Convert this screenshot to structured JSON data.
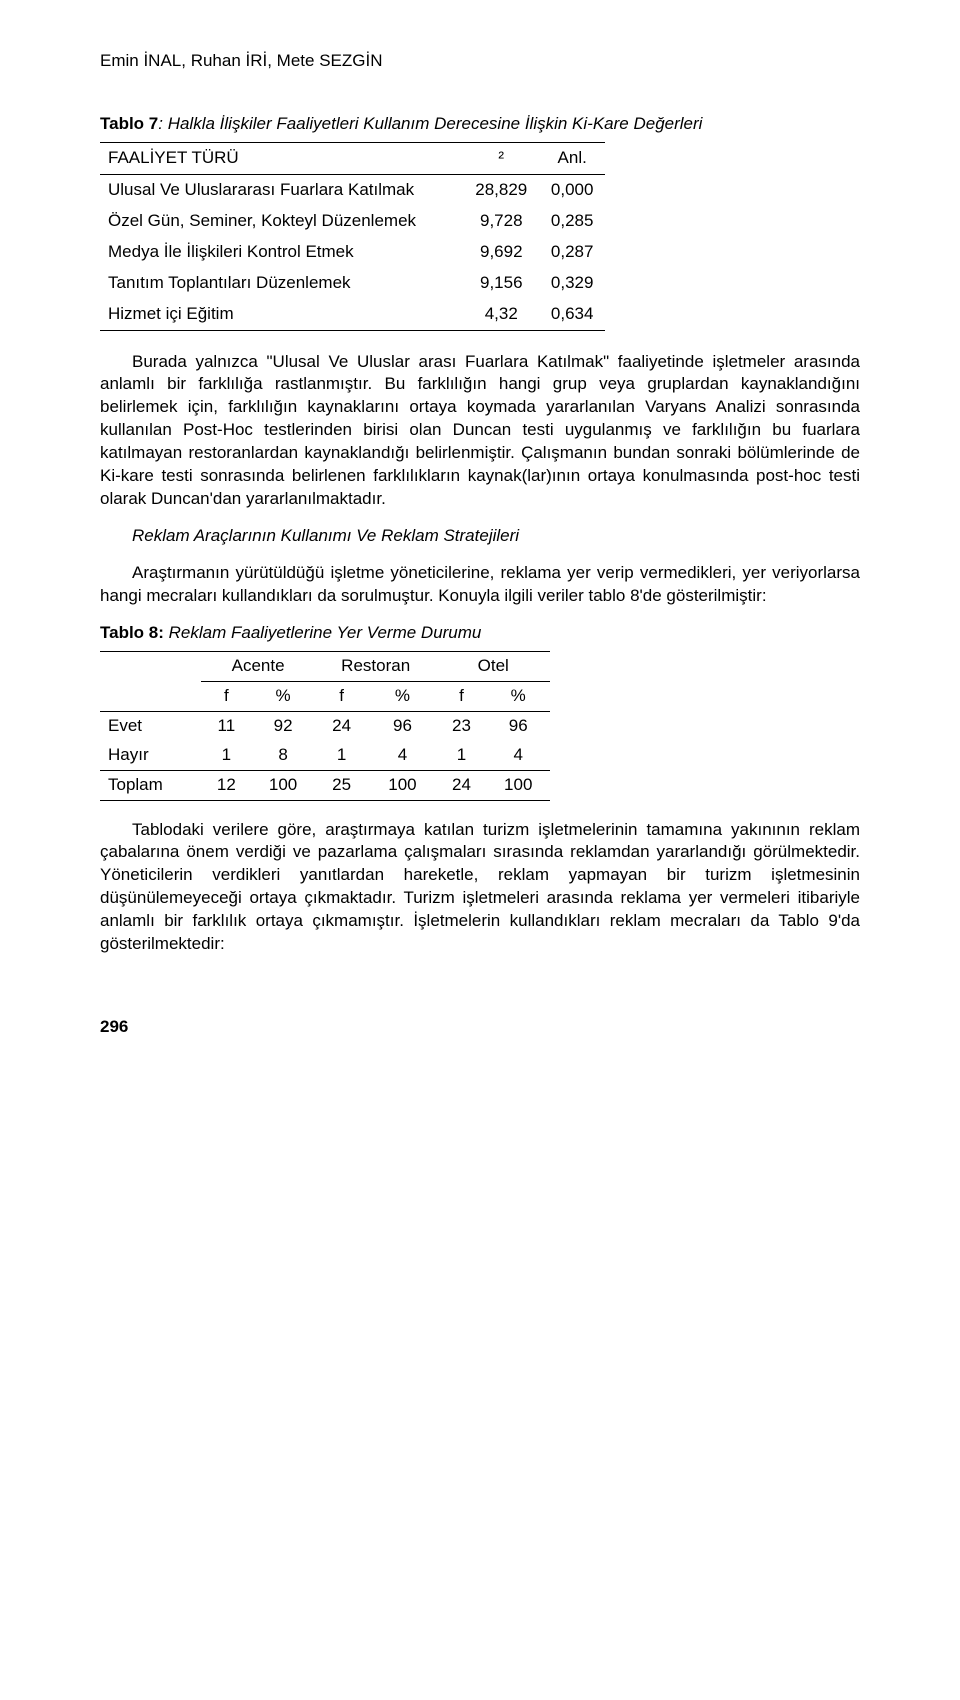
{
  "authors": "Emin İNAL, Ruhan İRİ, Mete SEZGİN",
  "table7": {
    "caption_label": "Tablo 7",
    "caption_sep": ": ",
    "caption_title": "Halkla İlişkiler Faaliyetleri Kullanım Derecesine İlişkin Ki-Kare Değerleri",
    "head": {
      "c0": "FAALİYET TÜRÜ",
      "c1": "²",
      "c2": "Anl."
    },
    "rows": [
      {
        "c0": "Ulusal Ve Uluslararası Fuarlara Katılmak",
        "c1": "28,829",
        "c2": "0,000"
      },
      {
        "c0": "Özel Gün, Seminer, Kokteyl Düzenlemek",
        "c1": "9,728",
        "c2": "0,285"
      },
      {
        "c0": "Medya İle İlişkileri Kontrol Etmek",
        "c1": "9,692",
        "c2": "0,287"
      },
      {
        "c0": "Tanıtım Toplantıları Düzenlemek",
        "c1": "9,156",
        "c2": "0,329"
      },
      {
        "c0": "Hizmet içi Eğitim",
        "c1": "4,32",
        "c2": "0,634"
      }
    ]
  },
  "para1": "Burada yalnızca \"Ulusal Ve Uluslar arası Fuarlara Katılmak\" faaliyetinde işletmeler arasında anlamlı bir farklılığa rastlanmıştır. Bu farklılığın hangi grup veya gruplardan kaynaklandığını belirlemek için, farklılığın kaynaklarını ortaya koymada yararlanılan Varyans Analizi sonrasında kullanılan Post-Hoc testlerinden birisi olan Duncan testi uygulanmış ve farklılığın bu fuarlara katılmayan restoranlardan kaynaklandığı belirlenmiştir. Çalışmanın bundan sonraki bölümlerinde de Ki-kare testi sonrasında belirlenen farklılıkların kaynak(lar)ının ortaya konulmasında post-hoc testi olarak Duncan'dan yararlanılmaktadır.",
  "subhead": "Reklam Araçlarının Kullanımı Ve Reklam Stratejileri",
  "para2": "Araştırmanın yürütüldüğü işletme yöneticilerine, reklama yer verip vermedikleri, yer veriyorlarsa hangi mecraları kullandıkları da sorulmuştur. Konuyla ilgili veriler tablo 8'de gösterilmiştir:",
  "table8": {
    "caption_label": "Tablo 8:",
    "caption_title": " Reklam Faaliyetlerine Yer Verme Durumu",
    "groups": [
      "Acente",
      "Restoran",
      "Otel"
    ],
    "subhead": [
      "f",
      "%",
      "f",
      "%",
      "f",
      "%"
    ],
    "rows": [
      {
        "label": "Evet",
        "v": [
          "11",
          "92",
          "24",
          "96",
          "23",
          "96"
        ]
      },
      {
        "label": "Hayır",
        "v": [
          "1",
          "8",
          "1",
          "4",
          "1",
          "4"
        ]
      },
      {
        "label": "Toplam",
        "v": [
          "12",
          "100",
          "25",
          "100",
          "24",
          "100"
        ]
      }
    ]
  },
  "para3": "Tablodaki verilere göre, araştırmaya katılan turizm işletmelerinin tamamına yakınının reklam çabalarına önem verdiği ve pazarlama çalışmaları sırasında reklamdan yararlandığı görülmektedir. Yöneticilerin verdikleri yanıtlardan hareketle, reklam yapmayan bir turizm işletmesinin düşünülemeyeceği ortaya çıkmaktadır. Turizm işletmeleri arasında reklama yer vermeleri itibariyle anlamlı bir farklılık ortaya çıkmamıştır. İşletmelerin kullandıkları reklam mecraları da Tablo 9'da gösterilmektedir:",
  "page_number": "296"
}
